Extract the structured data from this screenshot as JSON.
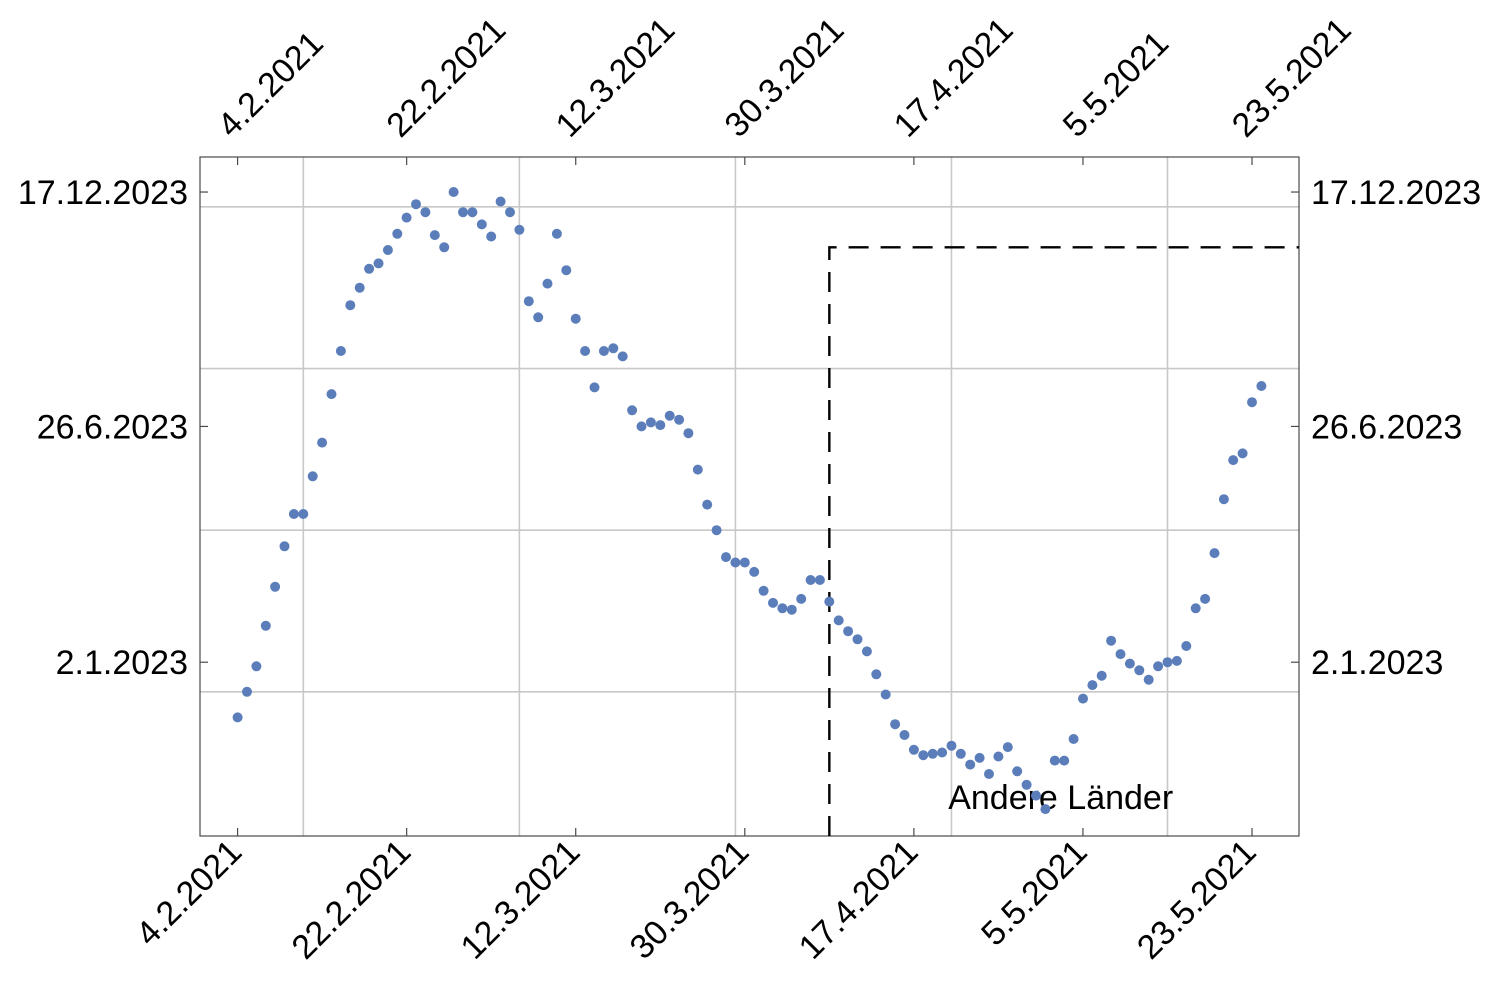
{
  "chart_data": {
    "type": "scatter",
    "x_axis": {
      "kind": "date",
      "tick_labels": [
        "4.2.2021",
        "22.2.2021",
        "12.3.2021",
        "30.3.2021",
        "17.4.2021",
        "5.5.2021",
        "23.5.2021"
      ],
      "tick_dates": [
        "2021-02-04",
        "2021-02-22",
        "2021-03-12",
        "2021-03-30",
        "2021-04-17",
        "2021-05-05",
        "2021-05-23"
      ],
      "range": [
        "2021-01-31",
        "2021-05-28"
      ],
      "label_rotation_deg": -45
    },
    "y_axis": {
      "kind": "date",
      "tick_labels": [
        "2.1.2023",
        "26.6.2023",
        "17.12.2023"
      ],
      "tick_dates": [
        "2023-01-02",
        "2023-06-26",
        "2023-12-17"
      ],
      "range": [
        "2022-08-26",
        "2024-01-12"
      ]
    },
    "grid": {
      "x": [
        "2021-02-11",
        "2021-03-06",
        "2021-03-29",
        "2021-04-21",
        "2021-05-14"
      ],
      "y": [
        "2022-12-11",
        "2023-04-10",
        "2023-08-08",
        "2023-12-06"
      ]
    },
    "mirror_axes": true,
    "series": [
      {
        "color": "#5b7ebb",
        "points": [
          [
            "2021-02-04",
            "2022-11-22"
          ],
          [
            "2021-02-05",
            "2022-12-11"
          ],
          [
            "2021-02-06",
            "2022-12-30"
          ],
          [
            "2021-02-07",
            "2023-01-29"
          ],
          [
            "2021-02-08",
            "2023-02-27"
          ],
          [
            "2021-02-09",
            "2023-03-29"
          ],
          [
            "2021-02-10",
            "2023-04-22"
          ],
          [
            "2021-02-11",
            "2023-04-22"
          ],
          [
            "2021-02-12",
            "2023-05-20"
          ],
          [
            "2021-02-13",
            "2023-06-14"
          ],
          [
            "2021-02-14",
            "2023-07-20"
          ],
          [
            "2021-02-15",
            "2023-08-21"
          ],
          [
            "2021-02-16",
            "2023-09-24"
          ],
          [
            "2021-02-17",
            "2023-10-07"
          ],
          [
            "2021-02-18",
            "2023-10-21"
          ],
          [
            "2021-02-19",
            "2023-10-25"
          ],
          [
            "2021-02-20",
            "2023-11-04"
          ],
          [
            "2021-02-21",
            "2023-11-16"
          ],
          [
            "2021-02-22",
            "2023-11-28"
          ],
          [
            "2021-02-23",
            "2023-12-08"
          ],
          [
            "2021-02-24",
            "2023-12-02"
          ],
          [
            "2021-02-25",
            "2023-11-15"
          ],
          [
            "2021-02-26",
            "2023-11-06"
          ],
          [
            "2021-02-27",
            "2023-12-17"
          ],
          [
            "2021-02-28",
            "2023-12-02"
          ],
          [
            "2021-03-01",
            "2023-12-02"
          ],
          [
            "2021-03-02",
            "2023-11-23"
          ],
          [
            "2021-03-03",
            "2023-11-14"
          ],
          [
            "2021-03-04",
            "2023-12-10"
          ],
          [
            "2021-03-05",
            "2023-12-02"
          ],
          [
            "2021-03-06",
            "2023-11-19"
          ],
          [
            "2021-03-07",
            "2023-09-27"
          ],
          [
            "2021-03-08",
            "2023-09-15"
          ],
          [
            "2021-03-09",
            "2023-10-10"
          ],
          [
            "2021-03-10",
            "2023-11-16"
          ],
          [
            "2021-03-11",
            "2023-10-20"
          ],
          [
            "2021-03-12",
            "2023-09-14"
          ],
          [
            "2021-03-13",
            "2023-08-21"
          ],
          [
            "2021-03-14",
            "2023-07-25"
          ],
          [
            "2021-03-15",
            "2023-08-21"
          ],
          [
            "2021-03-16",
            "2023-08-23"
          ],
          [
            "2021-03-17",
            "2023-08-17"
          ],
          [
            "2021-03-18",
            "2023-07-08"
          ],
          [
            "2021-03-19",
            "2023-06-26"
          ],
          [
            "2021-03-20",
            "2023-06-29"
          ],
          [
            "2021-03-21",
            "2023-06-27"
          ],
          [
            "2021-03-22",
            "2023-07-04"
          ],
          [
            "2021-03-23",
            "2023-07-01"
          ],
          [
            "2021-03-24",
            "2023-06-21"
          ],
          [
            "2021-03-25",
            "2023-05-25"
          ],
          [
            "2021-03-26",
            "2023-04-29"
          ],
          [
            "2021-03-27",
            "2023-04-10"
          ],
          [
            "2021-03-28",
            "2023-03-21"
          ],
          [
            "2021-03-29",
            "2023-03-17"
          ],
          [
            "2021-03-30",
            "2023-03-17"
          ],
          [
            "2021-03-31",
            "2023-03-10"
          ],
          [
            "2021-04-01",
            "2023-02-24"
          ],
          [
            "2021-04-02",
            "2023-02-15"
          ],
          [
            "2021-04-03",
            "2023-02-11"
          ],
          [
            "2021-04-04",
            "2023-02-10"
          ],
          [
            "2021-04-05",
            "2023-02-18"
          ],
          [
            "2021-04-06",
            "2023-03-04"
          ],
          [
            "2021-04-07",
            "2023-03-04"
          ],
          [
            "2021-04-08",
            "2023-02-16"
          ],
          [
            "2021-04-09",
            "2023-02-02"
          ],
          [
            "2021-04-10",
            "2023-01-25"
          ],
          [
            "2021-04-11",
            "2023-01-19"
          ],
          [
            "2021-04-12",
            "2023-01-10"
          ],
          [
            "2021-04-13",
            "2022-12-24"
          ],
          [
            "2021-04-14",
            "2022-12-09"
          ],
          [
            "2021-04-15",
            "2022-11-17"
          ],
          [
            "2021-04-16",
            "2022-11-09"
          ],
          [
            "2021-04-17",
            "2022-10-29"
          ],
          [
            "2021-04-18",
            "2022-10-25"
          ],
          [
            "2021-04-19",
            "2022-10-26"
          ],
          [
            "2021-04-20",
            "2022-10-27"
          ],
          [
            "2021-04-21",
            "2022-11-01"
          ],
          [
            "2021-04-22",
            "2022-10-26"
          ],
          [
            "2021-04-23",
            "2022-10-18"
          ],
          [
            "2021-04-24",
            "2022-10-23"
          ],
          [
            "2021-04-25",
            "2022-10-11"
          ],
          [
            "2021-04-26",
            "2022-10-24"
          ],
          [
            "2021-04-27",
            "2022-10-31"
          ],
          [
            "2021-04-28",
            "2022-10-13"
          ],
          [
            "2021-04-29",
            "2022-10-03"
          ],
          [
            "2021-04-30",
            "2022-09-25"
          ],
          [
            "2021-05-01",
            "2022-09-15"
          ],
          [
            "2021-05-02",
            "2022-10-21"
          ],
          [
            "2021-05-03",
            "2022-10-21"
          ],
          [
            "2021-05-04",
            "2022-11-06"
          ],
          [
            "2021-05-05",
            "2022-12-06"
          ],
          [
            "2021-05-06",
            "2022-12-16"
          ],
          [
            "2021-05-07",
            "2022-12-23"
          ],
          [
            "2021-05-08",
            "2023-01-18"
          ],
          [
            "2021-05-09",
            "2023-01-08"
          ],
          [
            "2021-05-10",
            "2023-01-01"
          ],
          [
            "2021-05-11",
            "2022-12-27"
          ],
          [
            "2021-05-12",
            "2022-12-20"
          ],
          [
            "2021-05-13",
            "2022-12-30"
          ],
          [
            "2021-05-14",
            "2023-01-02"
          ],
          [
            "2021-05-15",
            "2023-01-03"
          ],
          [
            "2021-05-16",
            "2023-01-14"
          ],
          [
            "2021-05-17",
            "2023-02-11"
          ],
          [
            "2021-05-18",
            "2023-02-18"
          ],
          [
            "2021-05-19",
            "2023-03-24"
          ],
          [
            "2021-05-20",
            "2023-05-03"
          ],
          [
            "2021-05-21",
            "2023-06-01"
          ],
          [
            "2021-05-22",
            "2023-06-06"
          ],
          [
            "2021-05-23",
            "2023-07-14"
          ],
          [
            "2021-05-24",
            "2023-07-26"
          ]
        ]
      }
    ],
    "annotations": [
      {
        "text": "Andere Länder",
        "region": {
          "x_from": "2021-04-08",
          "x_to": "2021-05-28",
          "y_from": "2022-08-26",
          "y_to": "2023-11-06"
        },
        "style": "dashed box",
        "label_position": "bottom-center of region"
      }
    ]
  }
}
